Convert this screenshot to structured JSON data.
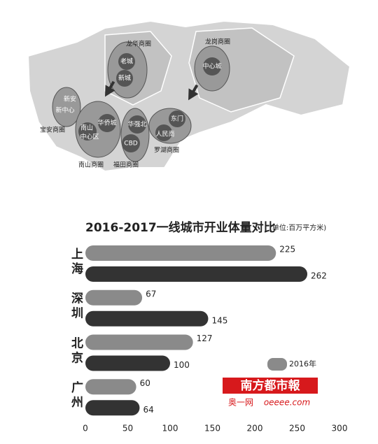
{
  "map": {
    "labels": [
      "龙华商圈",
      "老城",
      "新城",
      "龙岗商圈",
      "中心城",
      "新安",
      "新中心",
      "宝安商圈",
      "南山",
      "中心区",
      "华侨城",
      "南山商圈",
      "华强北",
      "CBD",
      "福田商圈",
      "东门",
      "人民南",
      "罗湖商圈"
    ]
  },
  "chart_data": {
    "type": "hbar",
    "title": "2016-2017一线城市开业体量对比",
    "subtitle": "(单位:百万平方米)",
    "categories": [
      "上海",
      "深圳",
      "北京",
      "广州"
    ],
    "series": [
      {
        "name": "2016年",
        "color": "#8a8a8a",
        "values": [
          225,
          67,
          127,
          60
        ]
      },
      {
        "color": "#333333",
        "values": [
          262,
          145,
          100,
          64
        ]
      }
    ],
    "xlim": [
      0,
      300
    ],
    "xticks": [
      0,
      50,
      100,
      150,
      200,
      250,
      300
    ]
  },
  "watermark": {
    "brand": "南方都市報",
    "site": "奥一网",
    "url": "oeeee.com"
  }
}
